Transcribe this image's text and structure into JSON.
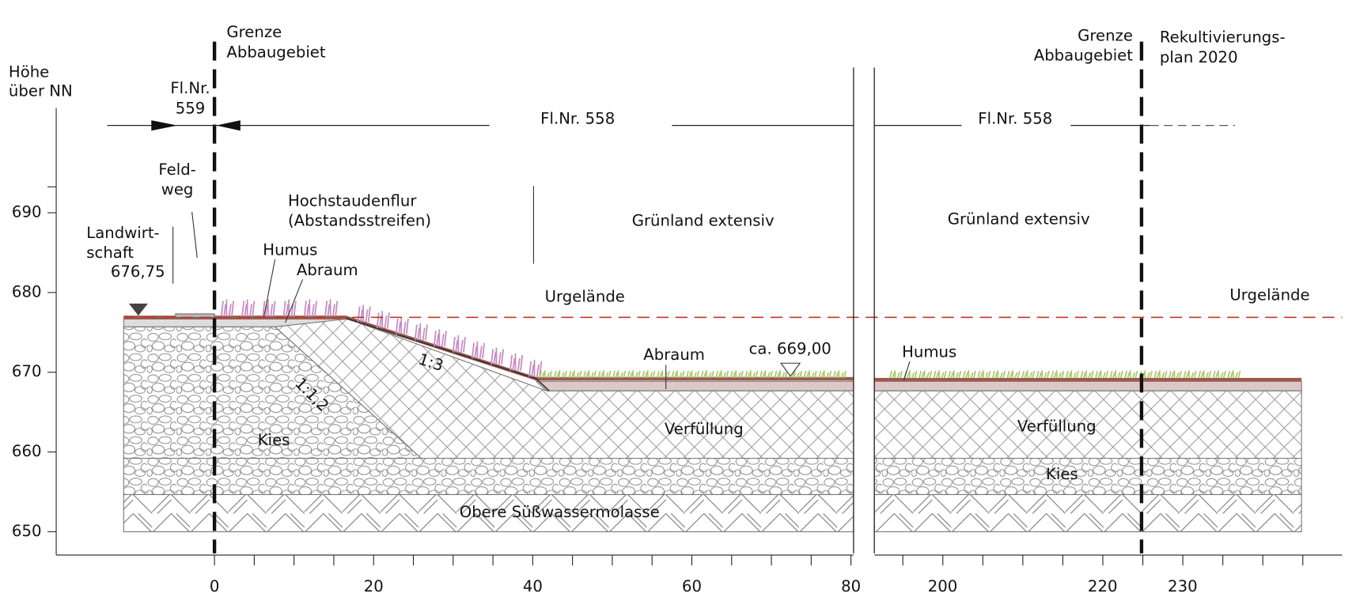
{
  "axis": {
    "y_title": [
      "Höhe",
      "über NN"
    ],
    "y_ticks": [
      650,
      660,
      670,
      680,
      690
    ],
    "x_ticks_left": [
      0,
      20,
      40,
      60,
      80
    ],
    "x_ticks_right": [
      200,
      220,
      230
    ]
  },
  "labels": {
    "grenze_left": [
      "Grenze",
      "Abbaugebiet"
    ],
    "grenze_right": [
      "Grenze",
      "Abbaugebiet"
    ],
    "rekultivierung": [
      "Rekultivierungs-",
      "plan 2020"
    ],
    "flnr_559": [
      "Fl.Nr.",
      "559"
    ],
    "flnr_558_left": "Fl.Nr. 558",
    "flnr_558_right": "Fl.Nr. 558",
    "feldweg": [
      "Feld-",
      "weg"
    ],
    "landwirtschaft": [
      "Landwirt-",
      "schaft"
    ],
    "height_left": "676,75",
    "hochstaudenflur": [
      "Hochstaudenflur",
      "(Abstandsstreifen)"
    ],
    "gruenland_left": "Grünland extensiv",
    "gruenland_right": "Grünland extensiv",
    "humus_left": "Humus",
    "abraum_left": "Abraum",
    "urgelaende_left": "Urgelände",
    "urgelaende_right": "Urgelände",
    "abraum_right": "Abraum",
    "height_right": "ca. 669,00",
    "humus_right": "Humus",
    "slope_1_3": "1:3",
    "slope_1_1_2": "1:1,2",
    "kies_left": "Kies",
    "verfuellung_left": "Verfüllung",
    "verfuellung_right": "Verfüllung",
    "kies_right": "Kies",
    "molasse": "Obere Süßwassermolasse"
  }
}
